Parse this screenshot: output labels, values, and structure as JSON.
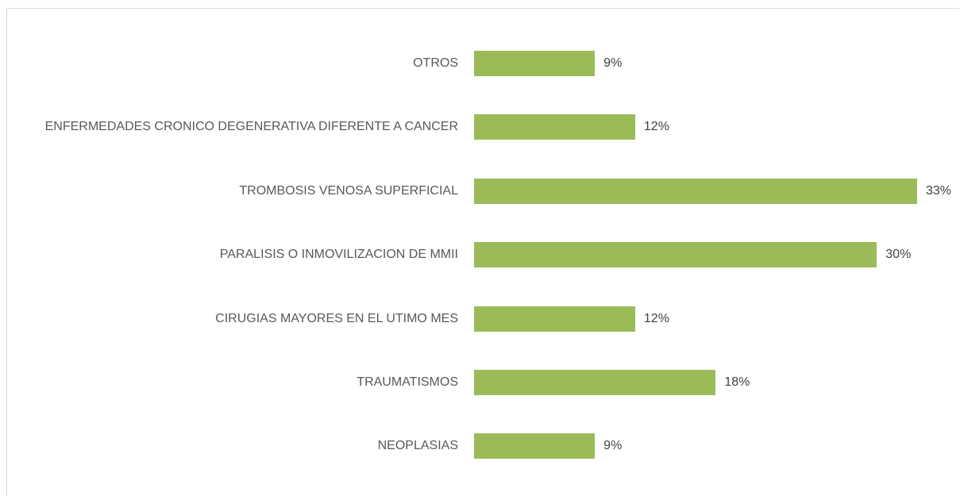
{
  "chart_data": {
    "type": "barh",
    "categories": [
      "OTROS",
      "ENFERMEDADES CRONICO DEGENERATIVA DIFERENTE A CANCER",
      "TROMBOSIS VENOSA SUPERFICIAL",
      "PARALISIS O INMOVILIZACION DE MMII",
      "CIRUGIAS MAYORES EN EL UTIMO MES",
      "TRAUMATISMOS",
      "NEOPLASIAS"
    ],
    "values": [
      9,
      12,
      33,
      30,
      12,
      18,
      9
    ],
    "value_labels": [
      "9%",
      "12%",
      "33%",
      "30%",
      "12%",
      "18%",
      "9%"
    ],
    "color": "#9bbb59"
  }
}
